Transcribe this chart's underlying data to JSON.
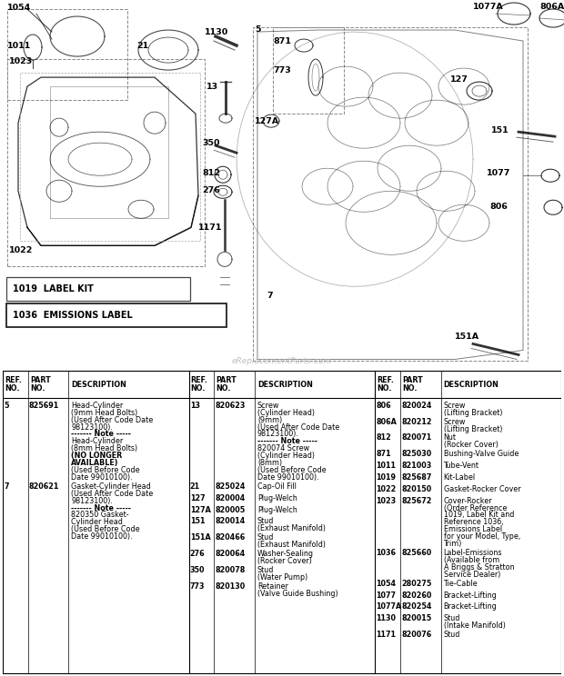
{
  "col1_rows": [
    [
      "5",
      "825691",
      [
        "Head-Cylinder",
        "(9mm Head Bolts)",
        "(Used After Code Date",
        "98123100).",
        "------- Note -----",
        "Head-Cylinder",
        "(8mm Head Bolts)",
        "(NO LONGER",
        "AVAILABLE)",
        "(Used Before Code",
        "Date 99010100)."
      ]
    ],
    [
      "7",
      "820621",
      [
        "Gasket-Cylinder Head",
        "(Used After Code Date",
        "98123100).",
        "------- Note -----",
        "820350 Gasket-",
        "Cylinder Head",
        "(Used Before Code",
        "Date 99010100)."
      ]
    ]
  ],
  "col2_rows": [
    [
      "13",
      "820623",
      [
        "Screw",
        "(Cylinder Head)",
        "(9mm)",
        "(Used After Code Date",
        "98123100).",
        "------- Note -----",
        "820074 Screw",
        "(Cylinder Head)",
        "(8mm)",
        "(Used Before Code",
        "Date 99010100)."
      ]
    ],
    [
      "21",
      "825024",
      [
        "Cap-Oil Fill"
      ]
    ],
    [
      "127",
      "820004",
      [
        "Plug-Welch"
      ]
    ],
    [
      "127A",
      "820005",
      [
        "Plug-Welch"
      ]
    ],
    [
      "151",
      "820014",
      [
        "Stud",
        "(Exhaust Manifold)"
      ]
    ],
    [
      "151A",
      "820466",
      [
        "Stud",
        "(Exhaust Manifold)"
      ]
    ],
    [
      "276",
      "820064",
      [
        "Washer-Sealing",
        "(Rocker Cover)"
      ]
    ],
    [
      "350",
      "820078",
      [
        "Stud",
        "(Water Pump)"
      ]
    ],
    [
      "773",
      "820130",
      [
        "Retainer",
        "(Valve Guide Bushing)"
      ]
    ]
  ],
  "col3_rows": [
    [
      "806",
      "820024",
      [
        "Screw",
        "(Lifting Bracket)"
      ]
    ],
    [
      "806A",
      "820212",
      [
        "Screw",
        "(Lifting Bracket)"
      ]
    ],
    [
      "812",
      "820071",
      [
        "Nut",
        "(Rocker Cover)"
      ]
    ],
    [
      "871",
      "825030",
      [
        "Bushing-Valve Guide"
      ]
    ],
    [
      "1011",
      "821003",
      [
        "Tube-Vent"
      ]
    ],
    [
      "1019",
      "825687",
      [
        "Kit-Label"
      ]
    ],
    [
      "1022",
      "820150",
      [
        "Gasket-Rocker Cover"
      ]
    ],
    [
      "1023",
      "825672",
      [
        "Cover-Rocker",
        "(Order Reference",
        "1019, Label Kit and",
        "Reference 1036,",
        "Emissions Label",
        "for your Model, Type,",
        "Trim)"
      ]
    ],
    [
      "1036",
      "825660",
      [
        "Label-Emissions",
        "(Available from",
        "A Briggs & Stratton",
        "Service Dealer)"
      ]
    ],
    [
      "1054",
      "280275",
      [
        "Tie-Cable"
      ]
    ],
    [
      "1077",
      "820260",
      [
        "Bracket-Lifting"
      ]
    ],
    [
      "1077A",
      "820254",
      [
        "Bracket-Lifting"
      ]
    ],
    [
      "1130",
      "820015",
      [
        "Stud",
        "(Intake Manifold)"
      ]
    ],
    [
      "1171",
      "820076",
      [
        "Stud"
      ]
    ]
  ]
}
